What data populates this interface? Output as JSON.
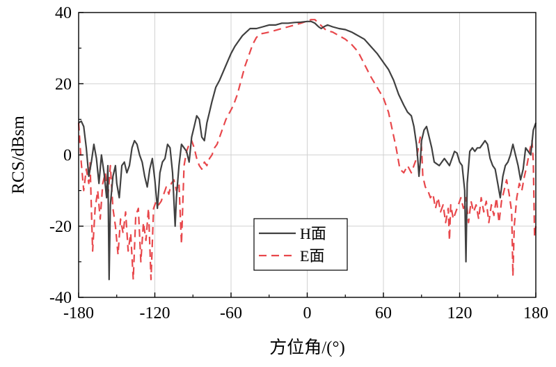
{
  "chart_data": {
    "type": "line",
    "title": "",
    "xlabel": "方位角/(°)",
    "ylabel": "RCS/dBsm",
    "xlim": [
      -180,
      180
    ],
    "ylim": [
      -40,
      40
    ],
    "xticks": [
      -180,
      -120,
      -60,
      0,
      60,
      120,
      180
    ],
    "yticks": [
      -40,
      -20,
      0,
      20,
      40
    ],
    "xtick_labels": [
      "-180",
      "-120",
      "-60",
      "0",
      "60",
      "120",
      "180"
    ],
    "ytick_labels": [
      "-40",
      "-20",
      "0",
      "20",
      "40"
    ],
    "grid": true,
    "legend": {
      "placement": "bottom-center"
    },
    "series": [
      {
        "name": "H面",
        "color": "#404040",
        "dash": "solid",
        "points": [
          [
            -180,
            9
          ],
          [
            -178,
            9.5
          ],
          [
            -176,
            8
          ],
          [
            -174,
            2
          ],
          [
            -172,
            -6
          ],
          [
            -170,
            -2
          ],
          [
            -168,
            3
          ],
          [
            -166,
            -1
          ],
          [
            -164,
            -8
          ],
          [
            -162,
            0
          ],
          [
            -160,
            -5
          ],
          [
            -158,
            -12
          ],
          [
            -157,
            -3
          ],
          [
            -156,
            -35
          ],
          [
            -155,
            -14
          ],
          [
            -153,
            -6
          ],
          [
            -151,
            -3
          ],
          [
            -150,
            -8
          ],
          [
            -148,
            -12
          ],
          [
            -146,
            -3
          ],
          [
            -144,
            -2
          ],
          [
            -142,
            -5
          ],
          [
            -140,
            -3
          ],
          [
            -138,
            2
          ],
          [
            -136,
            4
          ],
          [
            -134,
            3
          ],
          [
            -132,
            0
          ],
          [
            -130,
            -2
          ],
          [
            -128,
            -6
          ],
          [
            -126,
            -9
          ],
          [
            -124,
            -4
          ],
          [
            -122,
            -1
          ],
          [
            -120,
            -7
          ],
          [
            -118,
            -15
          ],
          [
            -116,
            -5
          ],
          [
            -114,
            -2
          ],
          [
            -112,
            -1
          ],
          [
            -110,
            3
          ],
          [
            -108,
            2
          ],
          [
            -106,
            -5
          ],
          [
            -104,
            -20
          ],
          [
            -103,
            -12
          ],
          [
            -101,
            -3
          ],
          [
            -99,
            3
          ],
          [
            -97,
            2
          ],
          [
            -95,
            1
          ],
          [
            -93,
            -2
          ],
          [
            -91,
            5
          ],
          [
            -89,
            8
          ],
          [
            -87,
            11
          ],
          [
            -85,
            10
          ],
          [
            -83,
            5
          ],
          [
            -81,
            4
          ],
          [
            -79,
            9
          ],
          [
            -77,
            12
          ],
          [
            -75,
            15
          ],
          [
            -72,
            19
          ],
          [
            -69,
            21
          ],
          [
            -66,
            23.5
          ],
          [
            -63,
            26
          ],
          [
            -60,
            28.5
          ],
          [
            -57,
            30.5
          ],
          [
            -54,
            32
          ],
          [
            -51,
            33.5
          ],
          [
            -48,
            34.5
          ],
          [
            -45,
            35.5
          ],
          [
            -40,
            35.5
          ],
          [
            -35,
            36
          ],
          [
            -30,
            36.5
          ],
          [
            -25,
            36.5
          ],
          [
            -20,
            37
          ],
          [
            -15,
            37
          ],
          [
            -10,
            37.2
          ],
          [
            -5,
            37.3
          ],
          [
            0,
            37.5
          ],
          [
            3,
            37.5
          ],
          [
            6,
            37
          ],
          [
            9,
            36
          ],
          [
            11,
            35.5
          ],
          [
            13,
            36
          ],
          [
            16,
            36.5
          ],
          [
            20,
            36
          ],
          [
            25,
            35.5
          ],
          [
            30,
            35.2
          ],
          [
            35,
            34.5
          ],
          [
            40,
            33.5
          ],
          [
            45,
            32.5
          ],
          [
            50,
            30.5
          ],
          [
            55,
            28.5
          ],
          [
            60,
            26
          ],
          [
            64,
            24
          ],
          [
            68,
            21
          ],
          [
            72,
            17
          ],
          [
            76,
            14
          ],
          [
            79,
            12
          ],
          [
            82,
            11
          ],
          [
            84,
            8
          ],
          [
            86,
            3
          ],
          [
            87,
            -1
          ],
          [
            88,
            -6
          ],
          [
            89,
            -2
          ],
          [
            90,
            4
          ],
          [
            92,
            7
          ],
          [
            94,
            8
          ],
          [
            96,
            5
          ],
          [
            98,
            2
          ],
          [
            100,
            -2
          ],
          [
            102,
            -2.5
          ],
          [
            104,
            -3
          ],
          [
            106,
            -2
          ],
          [
            108,
            -1
          ],
          [
            110,
            -2
          ],
          [
            112,
            -3
          ],
          [
            114,
            -1
          ],
          [
            116,
            1
          ],
          [
            118,
            0.5
          ],
          [
            120,
            -2
          ],
          [
            122,
            -3
          ],
          [
            124,
            -10
          ],
          [
            125,
            -30
          ],
          [
            126,
            -8
          ],
          [
            128,
            1
          ],
          [
            130,
            2
          ],
          [
            132,
            1
          ],
          [
            134,
            2
          ],
          [
            136,
            2
          ],
          [
            138,
            3
          ],
          [
            140,
            4
          ],
          [
            142,
            3
          ],
          [
            144,
            -1
          ],
          [
            146,
            -3
          ],
          [
            148,
            -4
          ],
          [
            150,
            -8
          ],
          [
            152,
            -12
          ],
          [
            154,
            -6
          ],
          [
            156,
            -3
          ],
          [
            158,
            -2
          ],
          [
            160,
            0
          ],
          [
            162,
            3
          ],
          [
            164,
            0
          ],
          [
            166,
            -3
          ],
          [
            168,
            -7
          ],
          [
            170,
            -4
          ],
          [
            172,
            2
          ],
          [
            174,
            1
          ],
          [
            176,
            0
          ],
          [
            178,
            7
          ],
          [
            180,
            9
          ]
        ]
      },
      {
        "name": "E面",
        "color": "#e8474b",
        "dash": "dashed",
        "points": [
          [
            -180,
            9
          ],
          [
            -178,
            -2
          ],
          [
            -176,
            -10
          ],
          [
            -174,
            -4
          ],
          [
            -172,
            -8
          ],
          [
            -171,
            -2
          ],
          [
            -169,
            -27
          ],
          [
            -167,
            -15
          ],
          [
            -165,
            -10
          ],
          [
            -163,
            -18
          ],
          [
            -161,
            -8
          ],
          [
            -159,
            -5
          ],
          [
            -157,
            -12
          ],
          [
            -155,
            -3
          ],
          [
            -153,
            -15
          ],
          [
            -151,
            -20
          ],
          [
            -149,
            -28
          ],
          [
            -147,
            -18
          ],
          [
            -145,
            -22
          ],
          [
            -143,
            -16
          ],
          [
            -141,
            -27
          ],
          [
            -139,
            -22
          ],
          [
            -137,
            -35
          ],
          [
            -135,
            -17
          ],
          [
            -133,
            -15
          ],
          [
            -131,
            -30
          ],
          [
            -129,
            -19
          ],
          [
            -127,
            -24
          ],
          [
            -125,
            -15
          ],
          [
            -123,
            -35
          ],
          [
            -121,
            -15
          ],
          [
            -119,
            -13
          ],
          [
            -117,
            -14
          ],
          [
            -115,
            -13
          ],
          [
            -113,
            -11
          ],
          [
            -111,
            -9
          ],
          [
            -109,
            -11
          ],
          [
            -107,
            -8
          ],
          [
            -105,
            -7
          ],
          [
            -103,
            -10
          ],
          [
            -101,
            -8
          ],
          [
            -99,
            -25
          ],
          [
            -97,
            -3
          ],
          [
            -95,
            1
          ],
          [
            -93,
            3
          ],
          [
            -91,
            4
          ],
          [
            -89,
            2
          ],
          [
            -87,
            -1
          ],
          [
            -85,
            -3
          ],
          [
            -83,
            -4
          ],
          [
            -81,
            -2
          ],
          [
            -79,
            -3
          ],
          [
            -77,
            -1
          ],
          [
            -75,
            0
          ],
          [
            -73,
            2
          ],
          [
            -71,
            3
          ],
          [
            -69,
            5
          ],
          [
            -67,
            7
          ],
          [
            -64,
            10
          ],
          [
            -61,
            12
          ],
          [
            -58,
            14
          ],
          [
            -55,
            17
          ],
          [
            -52,
            21
          ],
          [
            -49,
            25
          ],
          [
            -46,
            28
          ],
          [
            -43,
            31
          ],
          [
            -40,
            33
          ],
          [
            -37,
            34
          ],
          [
            -34,
            34.2
          ],
          [
            -30,
            34.5
          ],
          [
            -25,
            35
          ],
          [
            -20,
            35.5
          ],
          [
            -15,
            36
          ],
          [
            -10,
            36.5
          ],
          [
            -5,
            37
          ],
          [
            0,
            37.6
          ],
          [
            3,
            38
          ],
          [
            6,
            38
          ],
          [
            9,
            37
          ],
          [
            12,
            36
          ],
          [
            15,
            35
          ],
          [
            20,
            34.5
          ],
          [
            25,
            33.5
          ],
          [
            30,
            32.5
          ],
          [
            35,
            31
          ],
          [
            40,
            29
          ],
          [
            45,
            25.5
          ],
          [
            50,
            22
          ],
          [
            55,
            19
          ],
          [
            60,
            16
          ],
          [
            64,
            12
          ],
          [
            67,
            7
          ],
          [
            70,
            2
          ],
          [
            73,
            -4
          ],
          [
            76,
            -5
          ],
          [
            79,
            -3
          ],
          [
            82,
            -5
          ],
          [
            84,
            -3
          ],
          [
            86,
            -1
          ],
          [
            88,
            3
          ],
          [
            89,
            5
          ],
          [
            90,
            2
          ],
          [
            91,
            -6
          ],
          [
            93,
            -9
          ],
          [
            95,
            -10
          ],
          [
            97,
            -12
          ],
          [
            99,
            -11
          ],
          [
            101,
            -15
          ],
          [
            103,
            -12
          ],
          [
            105,
            -16
          ],
          [
            107,
            -14
          ],
          [
            109,
            -19
          ],
          [
            111,
            -15
          ],
          [
            112,
            -24
          ],
          [
            113,
            -14
          ],
          [
            115,
            -18
          ],
          [
            117,
            -16
          ],
          [
            119,
            -14
          ],
          [
            121,
            -12
          ],
          [
            123,
            -15
          ],
          [
            125,
            -12
          ],
          [
            127,
            -19
          ],
          [
            129,
            -13
          ],
          [
            131,
            -16
          ],
          [
            133,
            -14
          ],
          [
            135,
            -18
          ],
          [
            137,
            -12
          ],
          [
            139,
            -16
          ],
          [
            141,
            -13
          ],
          [
            143,
            -19
          ],
          [
            145,
            -14
          ],
          [
            147,
            -17
          ],
          [
            149,
            -12
          ],
          [
            151,
            -19
          ],
          [
            153,
            -13
          ],
          [
            155,
            -10
          ],
          [
            157,
            -7
          ],
          [
            159,
            -11
          ],
          [
            161,
            -16
          ],
          [
            162,
            -34
          ],
          [
            163,
            -20
          ],
          [
            165,
            -12
          ],
          [
            167,
            -8
          ],
          [
            169,
            -10
          ],
          [
            171,
            -6
          ],
          [
            173,
            -3
          ],
          [
            175,
            1
          ],
          [
            177,
            4
          ],
          [
            178,
            -2
          ],
          [
            179,
            -23
          ],
          [
            180,
            -20
          ]
        ]
      }
    ]
  }
}
